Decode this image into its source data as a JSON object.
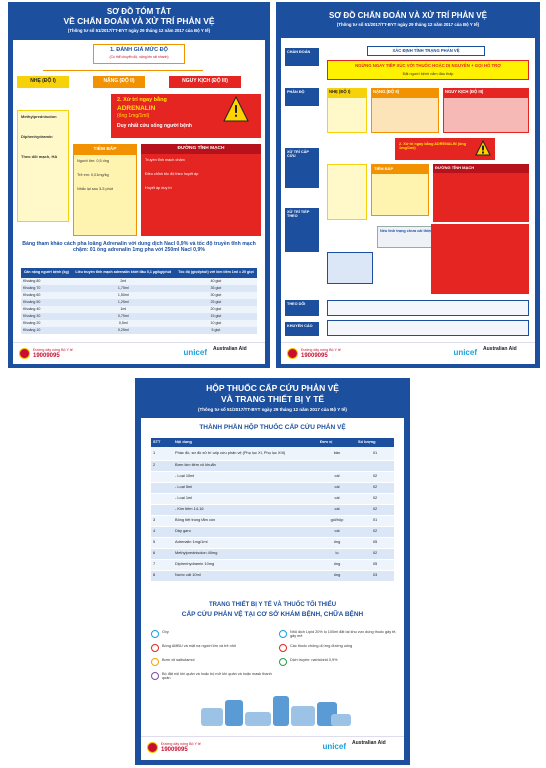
{
  "poster1": {
    "title_line1": "SƠ ĐỒ TÓM TẮT",
    "title_line2": "VỀ CHẨN ĐOÁN VÀ XỬ TRÍ PHẢN VỆ",
    "subtitle": "(Thông tư số 51/2017/TT-BYT ngày 29 tháng 12 năm 2017 của Bộ Y tế)",
    "assess": "1. ĐÁNH GIÁ MỨC ĐỘ",
    "assess_note": "(Có thể chuyển độ, nặng lên rất nhanh)",
    "levels": [
      "NHẸ (ĐỘ I)",
      "NẶNG (ĐỘ II)",
      "NGUY KỊCH (ĐỘ III)"
    ],
    "mild_lines": [
      "Methylprednisolon",
      "Diphenhydramin",
      "Theo dõi mạch, HA"
    ],
    "adrenalin_title": "2. Xử trí ngay bằng",
    "adrenalin_drug": "ADRENALIN",
    "adrenalin_dose": "(ống 1mg/1ml)",
    "adrenalin_note": "Duy nhất cứu sống người bệnh",
    "im_title": "TIÊM BẮP",
    "im_lines": [
      "Người lớn: 0,5 ống",
      "Trẻ em: 0,01mg/kg",
      "Nhắc lại sau 3-5 phút"
    ],
    "iv_title": "ĐƯỜNG TĨNH MẠCH",
    "iv_lines": [
      "Truyền tĩnh mạch chậm",
      "Điều chỉnh tốc độ theo huyết áp",
      "Huyết áp duy trì"
    ],
    "table_title": "Bảng tham khảo cách pha loãng Adrenalin với dung dịch Nacl 0,9% và tốc độ truyền tĩnh mạch chậm: 01 ống adrenalin 1mg pha với 250ml Nacl 0,9%",
    "table": {
      "header": [
        "Cân nặng người bệnh (kg)",
        "Liều truyền tĩnh mạch adrenalin khởi đầu 0,1 µg/kg/phút",
        "Tốc độ (giọt/phút) với kim tiêm 1ml = 20 giọt"
      ],
      "rows": [
        [
          "Khoảng 80",
          "2ml",
          "40 giọt"
        ],
        [
          "Khoảng 70",
          "1,75ml",
          "35 giọt"
        ],
        [
          "Khoảng 60",
          "1,50ml",
          "30 giọt"
        ],
        [
          "Khoảng 50",
          "1,25ml",
          "25 giọt"
        ],
        [
          "Khoảng 40",
          "1ml",
          "20 giọt"
        ],
        [
          "Khoảng 30",
          "0,75ml",
          "15 giọt"
        ],
        [
          "Khoảng 20",
          "0,5ml",
          "10 giọt"
        ],
        [
          "Khoảng 10",
          "0,25ml",
          "5 giọt"
        ]
      ]
    },
    "footer": {
      "hotline_label": "Đường dây nóng Bộ Y tế",
      "hotline": "19009095",
      "logo1": "unicef",
      "logo2": "Australian Aid"
    }
  },
  "poster2": {
    "title": "SƠ ĐỒ CHẨN ĐOÁN VÀ XỬ TRÍ PHẢN VỆ",
    "subtitle": "(Thông tư số 51/2017/TT-BYT ngày 29 tháng 12 năm 2017 của Bộ Y tế)",
    "stages": [
      "CHẨN ĐOÁN",
      "PHÂN ĐỘ",
      "XỬ TRÍ CẤP CỨU",
      "XỬ TRÍ TIẾP THEO",
      "THEO DÕI",
      "KHUYẾN CÁO"
    ],
    "identify": "XÁC ĐỊNH TÌNH TRẠNG PHẢN VỆ",
    "stop": "NGỪNG NGAY TIẾP XÚC VỚI THUỐC HOẶC DỊ NGUYÊN + GỌI HỖ TRỢ",
    "position": "Đặt người bệnh nằm đầu thấp",
    "levels": [
      "NHẸ (ĐỘ I)",
      "NẶNG (ĐỘ II)",
      "NGUY KỊCH (ĐỘ III)"
    ],
    "adrenalin": "2. Xử trí ngay bằng ADRENALIN (ống 1mg/1ml)",
    "im_title": "TIÊM BẮP",
    "iv_title": "ĐƯỜNG TĨNH MẠCH",
    "followup": "Nếu tình trạng chưa cải thiện",
    "footer": {
      "hotline_label": "Đường dây nóng Bộ Y tế",
      "hotline": "19009095",
      "logo1": "unicef",
      "logo2": "Australian Aid"
    }
  },
  "poster3": {
    "title_line1": "HỘP THUỐC CẤP CỨU PHẢN VỆ",
    "title_line2": "VÀ TRANG THIẾT BỊ Y TẾ",
    "subtitle": "(Thông tư số 51/2017/TT-BYT ngày 29 tháng 12 năm 2017 của Bộ Y tế)",
    "section1": "THÀNH PHẦN HỘP THUỐC CẤP CỨU PHẢN VỆ",
    "table": {
      "header": [
        "STT",
        "Nội dung",
        "Đơn vị",
        "Số lượng"
      ],
      "rows": [
        [
          "1",
          "Phác đồ, sơ đồ xử trí cấp cứu phản vệ (Phụ lục XI, Phụ lục XIII)",
          "bản",
          "01"
        ],
        [
          "2",
          "Bơm kim tiêm vô khuẩn",
          null,
          null
        ],
        [
          null,
          "- Loại 10ml",
          "cái",
          "02"
        ],
        [
          null,
          "- Loại 5ml",
          "cái",
          "02"
        ],
        [
          null,
          "- Loại 1ml",
          "cái",
          "02"
        ],
        [
          null,
          "- Kim tiêm 14-16",
          "cái",
          "02"
        ],
        [
          "3",
          "Bông tiệt trùng tẩm cồn",
          "gói/hộp",
          "01"
        ],
        [
          "4",
          "Dây garo",
          "cái",
          "02"
        ],
        [
          "5",
          "Adrenalin 1mg/1ml",
          "ống",
          "05"
        ],
        [
          "6",
          "Methylprednisolon 40mg",
          "lọ",
          "02"
        ],
        [
          "7",
          "Diphenhydramin 10mg",
          "ống",
          "05"
        ],
        [
          "8",
          "Nước cất 10ml",
          "ống",
          "03"
        ]
      ]
    },
    "section2_line1": "TRANG THIẾT BỊ Y TẾ VÀ THUỐC TỐI THIỂU",
    "section2_line2": "CẤP CỨU PHẢN VỆ TẠI CƠ SỞ KHÁM BỆNH, CHỮA BỆNH",
    "equipment": [
      "Oxy",
      "Bóng AMBU và mặt nạ người lớn và trẻ nhỏ",
      "Bơm xịt salbutamol",
      "Bộ đặt nội khí quản và hoặc bộ mở khí quản và hoặc mask thanh quản",
      "Nhũ dịch Lipid 20% lọ 100ml đặt tại khu vực dùng thuốc gây tê, gây mê",
      "Các thuốc chống dị ứng đường uống",
      "Dịch truyền: natriclorid 0,9%"
    ],
    "footer": {
      "hotline_label": "Đường dây nóng Bộ Y tế",
      "hotline": "19009095",
      "logo1": "unicef",
      "logo2": "Australian Aid"
    }
  }
}
